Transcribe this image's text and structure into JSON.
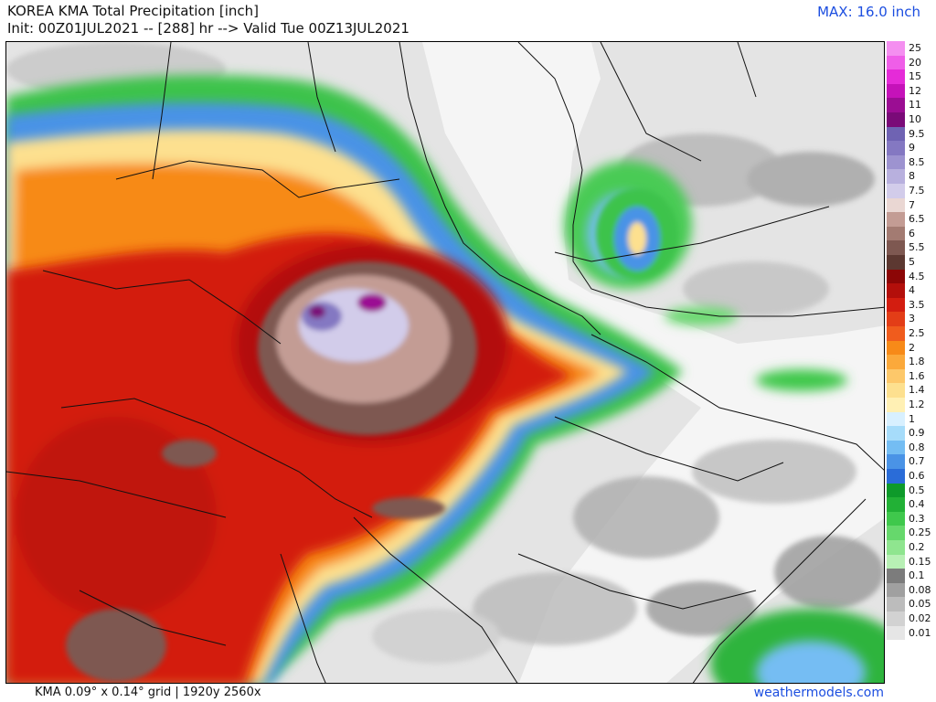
{
  "header": {
    "title": "KOREA KMA Total Precipitation [inch]",
    "subtitle": "Init: 00Z01JUL2021 -- [288] hr --> Valid Tue 00Z13JUL2021",
    "max_label": "MAX: 16.0 inch"
  },
  "footer": {
    "grid_info": "KMA 0.09° x 0.14° grid | 1920y 2560x",
    "brand": "weathermodels.com"
  },
  "legend": {
    "items": [
      {
        "label": "25",
        "color": "#f48ff0"
      },
      {
        "label": "20",
        "color": "#ef5ee8"
      },
      {
        "label": "15",
        "color": "#e52bd8"
      },
      {
        "label": "12",
        "color": "#c512b9"
      },
      {
        "label": "11",
        "color": "#9b0d93"
      },
      {
        "label": "10",
        "color": "#7a0a78"
      },
      {
        "label": "9.5",
        "color": "#6f63b3"
      },
      {
        "label": "9",
        "color": "#8478c2"
      },
      {
        "label": "8.5",
        "color": "#9d93d0"
      },
      {
        "label": "8",
        "color": "#b8b0de"
      },
      {
        "label": "7.5",
        "color": "#d2ccea"
      },
      {
        "label": "7",
        "color": "#ead7d3"
      },
      {
        "label": "6.5",
        "color": "#c39c94"
      },
      {
        "label": "6",
        "color": "#a37b72"
      },
      {
        "label": "5.5",
        "color": "#7e5851"
      },
      {
        "label": "5",
        "color": "#5c3831"
      },
      {
        "label": "4.5",
        "color": "#8c0606"
      },
      {
        "label": "4",
        "color": "#b30f0b"
      },
      {
        "label": "3.5",
        "color": "#d31d10"
      },
      {
        "label": "3",
        "color": "#e33d17"
      },
      {
        "label": "2.5",
        "color": "#f05c1d"
      },
      {
        "label": "2",
        "color": "#f78a18"
      },
      {
        "label": "1.8",
        "color": "#fba93b"
      },
      {
        "label": "1.6",
        "color": "#fdc86a"
      },
      {
        "label": "1.4",
        "color": "#fde08f"
      },
      {
        "label": "1.2",
        "color": "#fff0b4"
      },
      {
        "label": "1",
        "color": "#d8f0ff"
      },
      {
        "label": "0.9",
        "color": "#a6dcfa"
      },
      {
        "label": "0.8",
        "color": "#74bdf3"
      },
      {
        "label": "0.7",
        "color": "#4a93e6"
      },
      {
        "label": "0.6",
        "color": "#2a6cd8"
      },
      {
        "label": "0.5",
        "color": "#0e9a2a"
      },
      {
        "label": "0.4",
        "color": "#22b136"
      },
      {
        "label": "0.3",
        "color": "#3fc84c"
      },
      {
        "label": "0.25",
        "color": "#66d86c"
      },
      {
        "label": "0.2",
        "color": "#8fe58f"
      },
      {
        "label": "0.15",
        "color": "#b8f0b5"
      },
      {
        "label": "0.1",
        "color": "#7c7c7c"
      },
      {
        "label": "0.08",
        "color": "#a0a0a0"
      },
      {
        "label": "0.05",
        "color": "#bcbcbc"
      },
      {
        "label": "0.02",
        "color": "#d2d2d2"
      },
      {
        "label": "0.01",
        "color": "#e6e6e6"
      }
    ]
  },
  "colors": {
    "accent": "#1c4ee0",
    "land_bg": "#e6e6e6",
    "sea_bg": "#f6f6f6",
    "border": "#000000"
  }
}
